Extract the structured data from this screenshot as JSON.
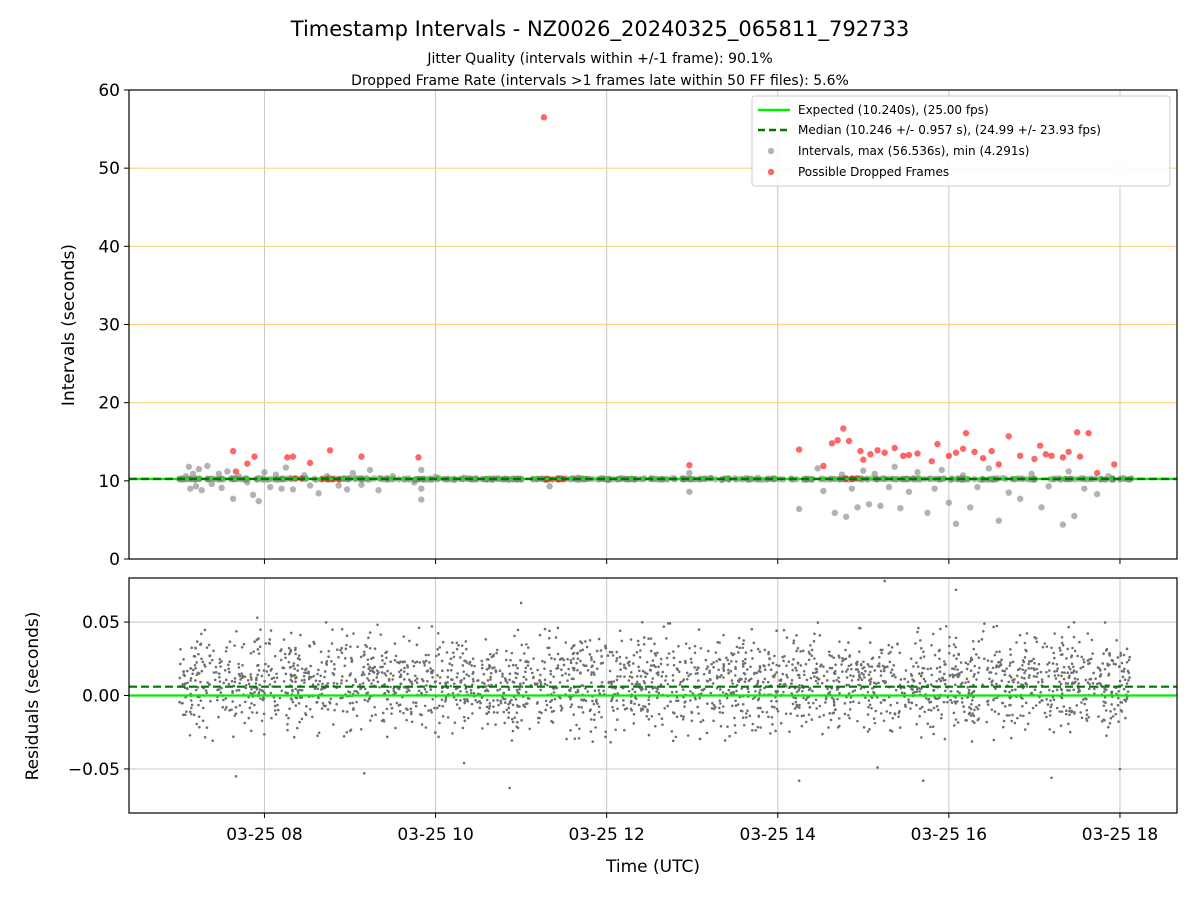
{
  "chart_data": [
    {
      "type": "scatter",
      "title": "Timestamp Intervals - NZ0026_20240325_065811_792733",
      "subtitle_lines": [
        "Jitter Quality (intervals within +/-1 frame): 90.1%",
        "Dropped Frame Rate (intervals >1 frames late within 50 FF files): 5.6%"
      ],
      "xlabel": "",
      "ylabel": "Intervals (seconds)",
      "x_type": "time",
      "xlim": [
        "2024-03-25 06:25",
        "2024-03-25 18:40"
      ],
      "ylim": [
        0,
        60
      ],
      "yticks": [
        0,
        10,
        20,
        30,
        40,
        50,
        60
      ],
      "yticklabels": [
        "0",
        "10",
        "20",
        "30",
        "40",
        "50",
        "60"
      ],
      "horizontal_grid_color": "#ffd27a",
      "vertical_grid": true,
      "legend_position": "top-right",
      "legend": [
        "Expected (10.240s), (25.00 fps)",
        "Median (10.246 +/- 0.957 s), (24.99 +/- 23.93 fps)",
        "Intervals, max (56.536s), min (4.291s)",
        "Possible Dropped Frames"
      ],
      "reference_lines": [
        {
          "value": 10.24,
          "style": "solid",
          "color": "#00ee00"
        },
        {
          "value": 10.246,
          "style": "dashed",
          "color": "#007700"
        }
      ],
      "series": [
        {
          "kind": "intervals",
          "color": "#808080",
          "points": [
            [
              "2024-03-25 07:05",
              10.6
            ],
            [
              "2024-03-25 07:07",
              11.8
            ],
            [
              "2024-03-25 07:08",
              9.0
            ],
            [
              "2024-03-25 07:10",
              10.9
            ],
            [
              "2024-03-25 07:12",
              9.3
            ],
            [
              "2024-03-25 07:14",
              11.5
            ],
            [
              "2024-03-25 07:16",
              8.8
            ],
            [
              "2024-03-25 07:20",
              11.9
            ],
            [
              "2024-03-25 07:23",
              9.6
            ],
            [
              "2024-03-25 07:28",
              10.9
            ],
            [
              "2024-03-25 07:30",
              9.1
            ],
            [
              "2024-03-25 07:34",
              11.2
            ],
            [
              "2024-03-25 07:38",
              7.7
            ],
            [
              "2024-03-25 07:42",
              10.6
            ],
            [
              "2024-03-25 07:48",
              9.8
            ],
            [
              "2024-03-25 07:52",
              8.2
            ],
            [
              "2024-03-25 07:56",
              7.4
            ],
            [
              "2024-03-25 08:00",
              11.1
            ],
            [
              "2024-03-25 08:04",
              9.2
            ],
            [
              "2024-03-25 08:08",
              10.8
            ],
            [
              "2024-03-25 08:12",
              9.0
            ],
            [
              "2024-03-25 08:15",
              11.7
            ],
            [
              "2024-03-25 08:20",
              8.9
            ],
            [
              "2024-03-25 08:28",
              10.7
            ],
            [
              "2024-03-25 08:32",
              9.4
            ],
            [
              "2024-03-25 08:38",
              8.4
            ],
            [
              "2024-03-25 08:44",
              10.6
            ],
            [
              "2024-03-25 08:52",
              9.4
            ],
            [
              "2024-03-25 08:58",
              8.9
            ],
            [
              "2024-03-25 09:02",
              11.0
            ],
            [
              "2024-03-25 09:08",
              9.5
            ],
            [
              "2024-03-25 09:14",
              11.4
            ],
            [
              "2024-03-25 09:20",
              8.8
            ],
            [
              "2024-03-25 09:30",
              10.6
            ],
            [
              "2024-03-25 09:45",
              9.8
            ],
            [
              "2024-03-25 10:00",
              10.5
            ],
            [
              "2024-03-25 09:50",
              9.0
            ],
            [
              "2024-03-25 09:50",
              7.6
            ],
            [
              "2024-03-25 09:50",
              11.4
            ],
            [
              "2024-03-25 10:20",
              10.4
            ],
            [
              "2024-03-25 10:40",
              10.2
            ],
            [
              "2024-03-25 11:20",
              9.3
            ],
            [
              "2024-03-25 11:40",
              10.4
            ],
            [
              "2024-03-25 12:20",
              10.2
            ],
            [
              "2024-03-25 12:58",
              8.6
            ],
            [
              "2024-03-25 12:58",
              11.0
            ],
            [
              "2024-03-25 13:30",
              10.3
            ],
            [
              "2024-03-25 14:15",
              6.4
            ],
            [
              "2024-03-25 14:28",
              11.6
            ],
            [
              "2024-03-25 14:32",
              8.7
            ],
            [
              "2024-03-25 14:40",
              5.9
            ],
            [
              "2024-03-25 14:45",
              10.8
            ],
            [
              "2024-03-25 14:48",
              5.4
            ],
            [
              "2024-03-25 14:52",
              9.0
            ],
            [
              "2024-03-25 14:56",
              6.6
            ],
            [
              "2024-03-25 15:00",
              11.3
            ],
            [
              "2024-03-25 15:04",
              7.0
            ],
            [
              "2024-03-25 15:08",
              10.9
            ],
            [
              "2024-03-25 15:12",
              6.8
            ],
            [
              "2024-03-25 15:18",
              9.2
            ],
            [
              "2024-03-25 15:22",
              11.8
            ],
            [
              "2024-03-25 15:26",
              6.5
            ],
            [
              "2024-03-25 15:32",
              8.6
            ],
            [
              "2024-03-25 15:38",
              11.1
            ],
            [
              "2024-03-25 15:45",
              5.9
            ],
            [
              "2024-03-25 15:50",
              9.0
            ],
            [
              "2024-03-25 15:55",
              11.4
            ],
            [
              "2024-03-25 16:00",
              7.2
            ],
            [
              "2024-03-25 16:05",
              4.5
            ],
            [
              "2024-03-25 16:10",
              10.7
            ],
            [
              "2024-03-25 16:15",
              6.6
            ],
            [
              "2024-03-25 16:20",
              9.2
            ],
            [
              "2024-03-25 16:28",
              11.6
            ],
            [
              "2024-03-25 16:35",
              4.9
            ],
            [
              "2024-03-25 16:42",
              8.5
            ],
            [
              "2024-03-25 16:50",
              7.7
            ],
            [
              "2024-03-25 16:58",
              10.9
            ],
            [
              "2024-03-25 17:05",
              6.6
            ],
            [
              "2024-03-25 17:10",
              9.3
            ],
            [
              "2024-03-25 17:20",
              4.4
            ],
            [
              "2024-03-25 17:24",
              11.2
            ],
            [
              "2024-03-25 17:28",
              5.5
            ],
            [
              "2024-03-25 17:35",
              9.0
            ],
            [
              "2024-03-25 17:44",
              8.3
            ],
            [
              "2024-03-25 17:52",
              10.6
            ],
            [
              "2024-03-25 18:00",
              10.2
            ],
            [
              "2024-03-25 18:08",
              10.3
            ]
          ]
        },
        {
          "kind": "dropped",
          "color": "#ff0000",
          "points": [
            [
              "2024-03-25 07:38",
              13.8
            ],
            [
              "2024-03-25 07:40",
              11.2
            ],
            [
              "2024-03-25 07:48",
              12.2
            ],
            [
              "2024-03-25 07:53",
              13.1
            ],
            [
              "2024-03-25 08:16",
              13.0
            ],
            [
              "2024-03-25 08:20",
              13.1
            ],
            [
              "2024-03-25 08:22",
              10.3
            ],
            [
              "2024-03-25 08:26",
              10.3
            ],
            [
              "2024-03-25 08:32",
              12.3
            ],
            [
              "2024-03-25 08:40",
              10.2
            ],
            [
              "2024-03-25 08:44",
              10.2
            ],
            [
              "2024-03-25 08:48",
              10.2
            ],
            [
              "2024-03-25 08:52",
              10.2
            ],
            [
              "2024-03-25 08:46",
              13.9
            ],
            [
              "2024-03-25 09:08",
              13.1
            ],
            [
              "2024-03-25 09:48",
              13.0
            ],
            [
              "2024-03-25 11:16",
              56.5
            ],
            [
              "2024-03-25 11:18",
              10.2
            ],
            [
              "2024-03-25 11:22",
              10.2
            ],
            [
              "2024-03-25 11:26",
              10.2
            ],
            [
              "2024-03-25 11:30",
              10.2
            ],
            [
              "2024-03-25 12:58",
              12.0
            ],
            [
              "2024-03-25 14:15",
              14.0
            ],
            [
              "2024-03-25 14:32",
              11.9
            ],
            [
              "2024-03-25 14:38",
              14.8
            ],
            [
              "2024-03-25 14:42",
              15.2
            ],
            [
              "2024-03-25 14:46",
              16.7
            ],
            [
              "2024-03-25 14:50",
              15.1
            ],
            [
              "2024-03-25 14:48",
              10.3
            ],
            [
              "2024-03-25 14:52",
              10.3
            ],
            [
              "2024-03-25 14:56",
              10.3
            ],
            [
              "2024-03-25 14:58",
              13.8
            ],
            [
              "2024-03-25 15:00",
              12.7
            ],
            [
              "2024-03-25 15:05",
              13.4
            ],
            [
              "2024-03-25 15:10",
              13.9
            ],
            [
              "2024-03-25 15:15",
              13.6
            ],
            [
              "2024-03-25 15:22",
              14.2
            ],
            [
              "2024-03-25 15:28",
              13.2
            ],
            [
              "2024-03-25 15:32",
              13.3
            ],
            [
              "2024-03-25 15:38",
              13.5
            ],
            [
              "2024-03-25 15:48",
              12.5
            ],
            [
              "2024-03-25 15:52",
              14.7
            ],
            [
              "2024-03-25 16:00",
              13.2
            ],
            [
              "2024-03-25 16:05",
              13.6
            ],
            [
              "2024-03-25 16:10",
              14.1
            ],
            [
              "2024-03-25 16:12",
              16.1
            ],
            [
              "2024-03-25 16:18",
              13.7
            ],
            [
              "2024-03-25 16:24",
              12.9
            ],
            [
              "2024-03-25 16:30",
              13.8
            ],
            [
              "2024-03-25 16:35",
              12.1
            ],
            [
              "2024-03-25 16:42",
              15.7
            ],
            [
              "2024-03-25 16:50",
              13.2
            ],
            [
              "2024-03-25 17:00",
              12.8
            ],
            [
              "2024-03-25 17:04",
              14.5
            ],
            [
              "2024-03-25 17:08",
              13.4
            ],
            [
              "2024-03-25 17:12",
              13.2
            ],
            [
              "2024-03-25 17:20",
              13.0
            ],
            [
              "2024-03-25 17:24",
              13.7
            ],
            [
              "2024-03-25 17:30",
              16.2
            ],
            [
              "2024-03-25 17:32",
              13.1
            ],
            [
              "2024-03-25 17:38",
              16.1
            ],
            [
              "2024-03-25 17:44",
              11.0
            ],
            [
              "2024-03-25 17:56",
              12.1
            ]
          ]
        }
      ]
    },
    {
      "type": "scatter",
      "xlabel": "Time (UTC)",
      "ylabel": "Residuals (seconds)",
      "x_type": "time",
      "xlim": [
        "2024-03-25 06:25",
        "2024-03-25 18:40"
      ],
      "ylim": [
        -0.08,
        0.08
      ],
      "yticks": [
        -0.05,
        0,
        0.05
      ],
      "yticklabels": [
        "−0.05",
        "0.00",
        "0.05"
      ],
      "xticks": [
        "2024-03-25 08:00",
        "2024-03-25 10:00",
        "2024-03-25 12:00",
        "2024-03-25 14:00",
        "2024-03-25 16:00",
        "2024-03-25 18:00"
      ],
      "xticklabels": [
        "03-25 08",
        "03-25 10",
        "03-25 12",
        "03-25 14",
        "03-25 16",
        "03-25 18"
      ],
      "grid": true,
      "reference_lines": [
        {
          "value": 0,
          "style": "solid",
          "color": "#00ee00"
        },
        {
          "value": 0.006,
          "style": "dashed",
          "color": "#007700"
        }
      ],
      "series": [
        {
          "kind": "residuals",
          "color": "#6f6f6f",
          "x_range": [
            "2024-03-25 07:00",
            "2024-03-25 18:08"
          ],
          "count": 2600,
          "typical_range": [
            -0.03,
            0.05
          ],
          "outliers": [
            [
              "2024-03-25 07:55",
              0.053
            ],
            [
              "2024-03-25 07:40",
              -0.055
            ],
            [
              "2024-03-25 09:10",
              -0.053
            ],
            [
              "2024-03-25 10:20",
              -0.046
            ],
            [
              "2024-03-25 10:52",
              -0.063
            ],
            [
              "2024-03-25 11:00",
              0.063
            ],
            [
              "2024-03-25 14:15",
              -0.058
            ],
            [
              "2024-03-25 15:15",
              0.078
            ],
            [
              "2024-03-25 15:10",
              -0.049
            ],
            [
              "2024-03-25 15:42",
              -0.058
            ],
            [
              "2024-03-25 16:05",
              0.072
            ],
            [
              "2024-03-25 17:12",
              -0.056
            ],
            [
              "2024-03-25 18:00",
              -0.05
            ]
          ]
        }
      ]
    }
  ]
}
